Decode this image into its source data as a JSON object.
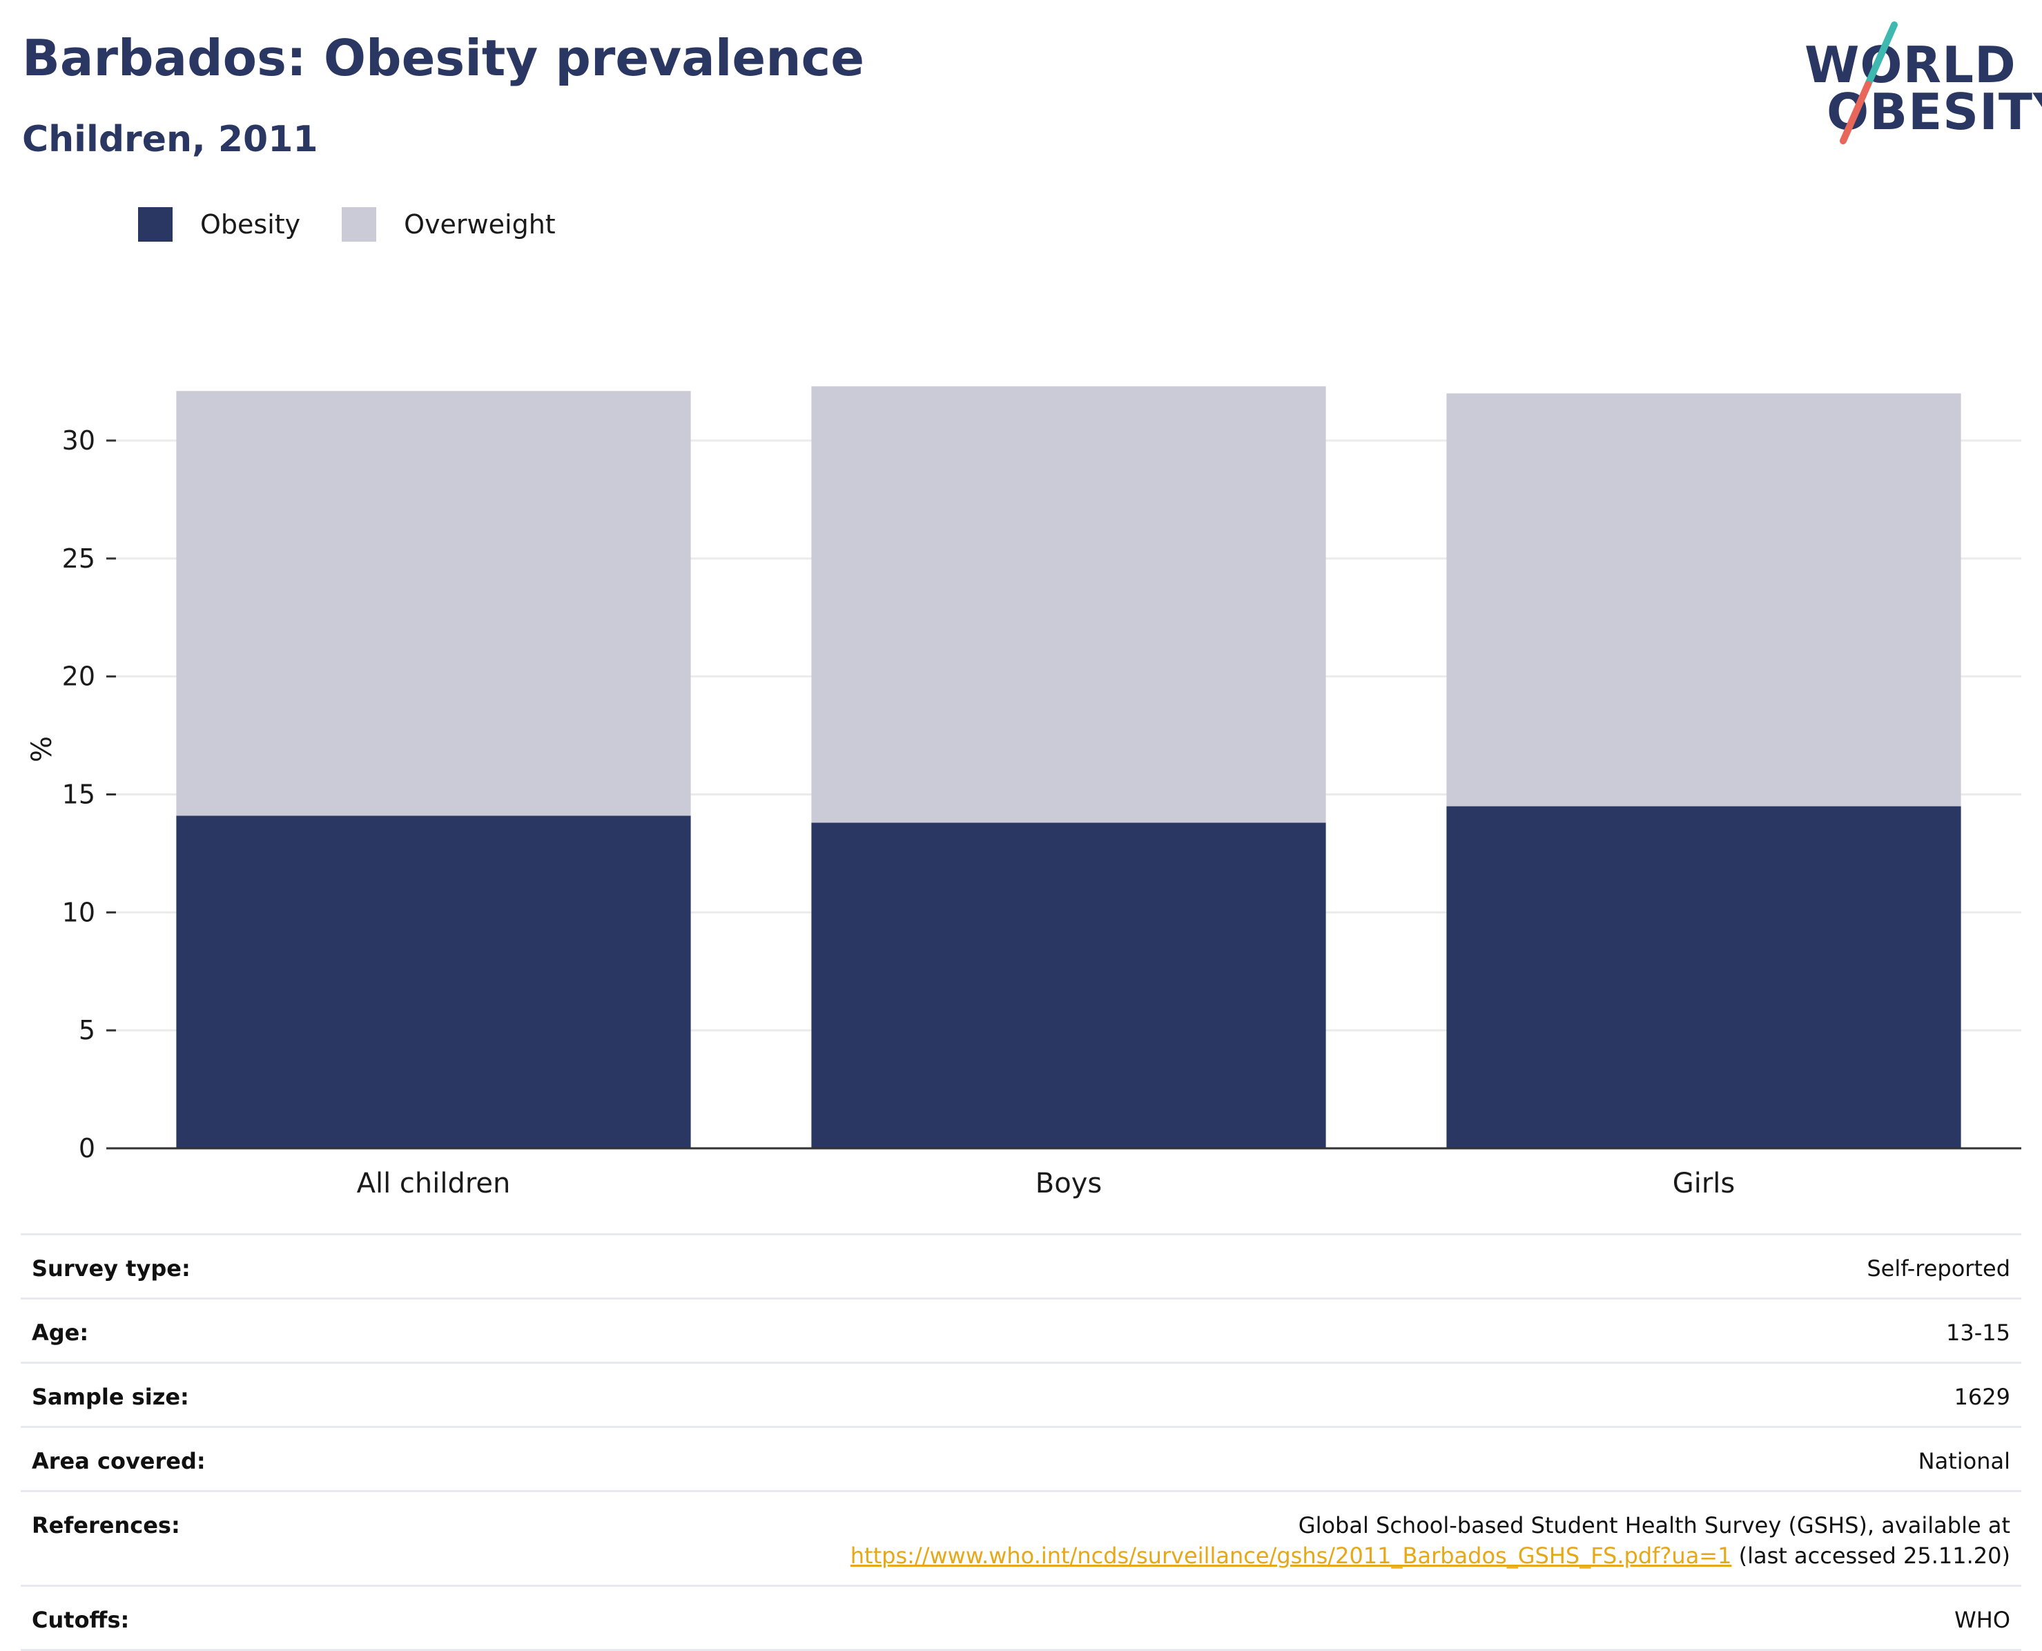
{
  "title": "Barbados: Obesity prevalence",
  "subtitle": "Children, 2011",
  "logo": {
    "line1": "WORLD",
    "line2": "OBESITY"
  },
  "colors": {
    "obesity": "#2a3762",
    "overweight": "#cacbd7",
    "accent_teal": "#3fb8b0",
    "accent_red": "#e8675a",
    "link": "#e6a818"
  },
  "chart_data": {
    "type": "bar",
    "stacked": true,
    "categories": [
      "All children",
      "Boys",
      "Girls"
    ],
    "series": [
      {
        "name": "Obesity",
        "values": [
          14.1,
          13.8,
          14.5
        ]
      },
      {
        "name": "Overweight",
        "values": [
          18.0,
          18.5,
          17.5
        ]
      }
    ],
    "ylabel": "%",
    "ylim": [
      0,
      33
    ],
    "yticks": [
      0,
      5,
      10,
      15,
      20,
      25,
      30
    ],
    "grid": true,
    "legend": "top-left"
  },
  "meta": [
    {
      "key": "Survey type:",
      "value": "Self-reported"
    },
    {
      "key": "Age:",
      "value": "13-15"
    },
    {
      "key": "Sample size:",
      "value": "1629"
    },
    {
      "key": "Area covered:",
      "value": "National"
    },
    {
      "key": "References:",
      "value": "Global School-based Student Health Survey (GSHS), available at",
      "link": "https://www.who.int/ncds/surveillance/gshs/2011_Barbados_GSHS_FS.pdf?ua=1",
      "suffix": "(last accessed 25.11.20)"
    },
    {
      "key": "Cutoffs:",
      "value": "WHO"
    }
  ]
}
